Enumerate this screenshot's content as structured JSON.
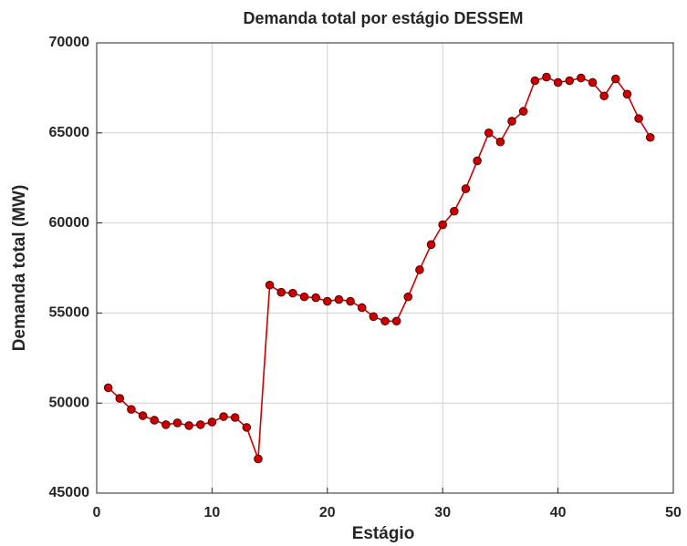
{
  "chart_data": {
    "type": "line",
    "title": "Demanda total por estágio DESSEM",
    "x_label": "Estágio",
    "y_label": "Demanda total (MW)",
    "x": [
      1,
      2,
      3,
      4,
      5,
      6,
      7,
      8,
      9,
      10,
      11,
      12,
      13,
      14,
      15,
      16,
      17,
      18,
      19,
      20,
      21,
      22,
      23,
      24,
      25,
      26,
      27,
      28,
      29,
      30,
      31,
      32,
      33,
      34,
      35,
      36,
      37,
      38,
      39,
      40,
      41,
      42,
      43,
      44,
      45,
      46,
      47,
      48
    ],
    "values": [
      50850,
      50260,
      49650,
      49300,
      49050,
      48800,
      48900,
      48750,
      48800,
      48950,
      49250,
      49200,
      48650,
      46900,
      56550,
      56150,
      56100,
      55900,
      55850,
      55650,
      55750,
      55650,
      55300,
      54800,
      54550,
      54550,
      55900,
      57400,
      58800,
      59900,
      60650,
      61900,
      63450,
      65000,
      64500,
      65650,
      66200,
      67900,
      68100,
      67800,
      67900,
      68050,
      67800,
      67050,
      68000,
      67150,
      65800,
      64750
    ],
    "color": "#cc0000",
    "marker_edge": "#550000",
    "xlim": [
      0,
      50
    ],
    "xticks": [
      0,
      10,
      20,
      30,
      40,
      50
    ],
    "ylim": [
      45000,
      70000
    ],
    "yticks": [
      45000,
      50000,
      55000,
      60000,
      65000,
      70000
    ],
    "grid": true
  }
}
